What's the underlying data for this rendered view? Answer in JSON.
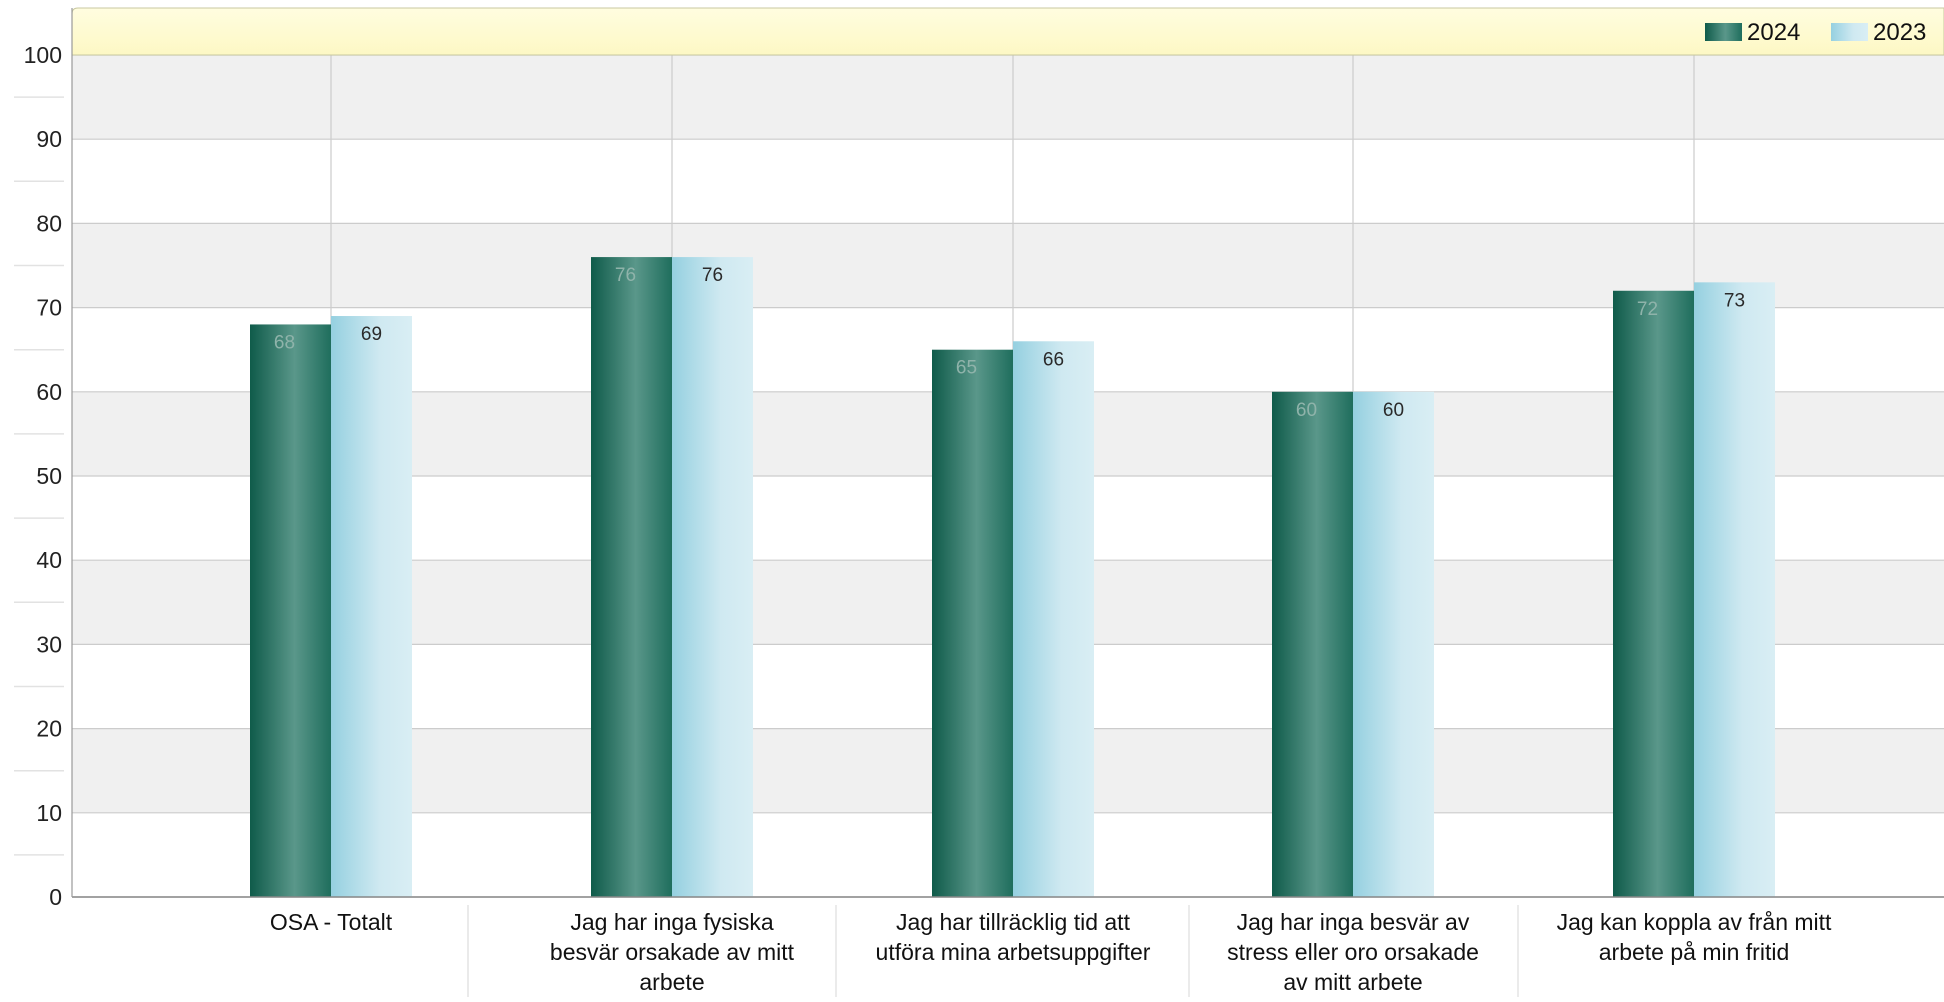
{
  "legend": [
    {
      "label": "2024",
      "color": "#1d6b5a"
    },
    {
      "label": "2023",
      "color": "#a6d8e6"
    }
  ],
  "colors": {
    "band": "#f0f0f0",
    "legend_strip": "#fffcd2",
    "grid": "#cccccc"
  },
  "chart_data": {
    "type": "bar",
    "categories": [
      "OSA - Totalt",
      "Jag har inga fysiska besvär orsakade av mitt arbete",
      "Jag har tillräcklig tid att utföra mina arbetsuppgifter",
      "Jag har inga besvär av stress eller oro orsakade av mitt arbete",
      "Jag kan koppla av från mitt arbete på min fritid"
    ],
    "category_lines": [
      [
        "OSA - Totalt"
      ],
      [
        "Jag har inga fysiska",
        "besvär orsakade av mitt",
        "arbete"
      ],
      [
        "Jag har tillräcklig tid att",
        "utföra mina arbetsuppgifter"
      ],
      [
        "Jag har inga besvär av",
        "stress eller oro orsakade",
        "av mitt arbete"
      ],
      [
        "Jag kan koppla av från mitt",
        "arbete på min fritid"
      ]
    ],
    "series": [
      {
        "name": "2024",
        "values": [
          68,
          76,
          65,
          60,
          72
        ]
      },
      {
        "name": "2023",
        "values": [
          69,
          76,
          66,
          60,
          73
        ]
      }
    ],
    "ylim": [
      0,
      100
    ],
    "yticks": [
      0,
      10,
      20,
      30,
      40,
      50,
      60,
      70,
      80,
      90,
      100
    ],
    "xlabel": "",
    "ylabel": "",
    "legend_position": "top-right",
    "grid": true
  }
}
